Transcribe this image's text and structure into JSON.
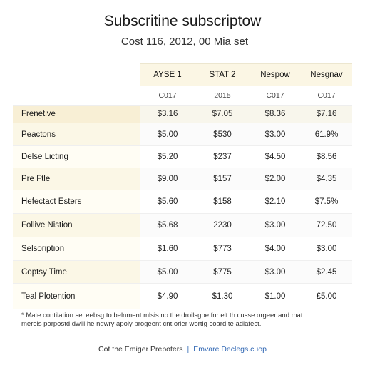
{
  "title": "Subscritine subscriptow",
  "subtitle": "Cost 116, 2012, 00 Mia set",
  "table": {
    "columns": [
      "AYSE 1",
      "STAT 2",
      "Nespow",
      "Nesgnav"
    ],
    "subheaders": [
      "C017",
      "2015",
      "C017",
      "C017"
    ],
    "rows": [
      {
        "label": "Frenetive",
        "values": [
          "$3.16",
          "$7.05",
          "$8.36",
          "$7.16"
        ]
      },
      {
        "label": "Peactons",
        "values": [
          "$5.00",
          "$530",
          "$3.00",
          "61.9%"
        ]
      },
      {
        "label": "Delse Licting",
        "values": [
          "$5.20",
          "$237",
          "$4.50",
          "$8.56"
        ]
      },
      {
        "label": "Pre Ftle",
        "values": [
          "$9.00",
          "$157",
          "$2.00",
          "$4.35"
        ]
      },
      {
        "label": "Hefectact Esters",
        "values": [
          "$5.60",
          "$158",
          "$2.10",
          "$7.5%"
        ]
      },
      {
        "label": "Follive Nistion",
        "values": [
          "$5.68",
          "2230",
          "$3.00",
          "72.50"
        ]
      },
      {
        "label": "Selsoription",
        "values": [
          "$1.60",
          "$773",
          "$4.00",
          "$3.00"
        ]
      },
      {
        "label": "Coptsy Time",
        "values": [
          "$5.00",
          "$775",
          "$3.00",
          "$2.45"
        ]
      },
      {
        "label": "Teal Plotention",
        "values": [
          "$4.90",
          "$1.30",
          "$1.00",
          "£5.00"
        ]
      }
    ]
  },
  "footnote": {
    "line1": "* Mate contilation sel eebsg to belnment mlsis no the droilsgbe fnr elt th cusse orgeer and mat",
    "line2": "merels porpostd dwill he ndwry apoly progeent cnt orler wortig coard te adlafect."
  },
  "footer": {
    "left": "Cot the Emiger Prepoters",
    "separator": "|",
    "right": "Emvare Declegs.cuop"
  }
}
